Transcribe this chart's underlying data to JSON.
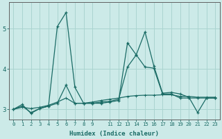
{
  "xlabel": "Humidex (Indice chaleur)",
  "background_color": "#cceae8",
  "grid_color": "#aad4d0",
  "line_color": "#1a6b65",
  "xlim": [
    -0.5,
    23.5
  ],
  "ylim": [
    2.75,
    5.65
  ],
  "xtick_positions": [
    0,
    1,
    2,
    3,
    4,
    5,
    6,
    7,
    8,
    9,
    11,
    12,
    13,
    14,
    15,
    16,
    17,
    18,
    19,
    20,
    21,
    22,
    23
  ],
  "xtick_labels": [
    "0",
    "1",
    "2",
    "3",
    "4",
    "5",
    "6",
    "7",
    "8",
    "9",
    "11",
    "12",
    "13",
    "14",
    "15",
    "16",
    "17",
    "18",
    "19",
    "20",
    "21",
    "22",
    "23"
  ],
  "yticks": [
    3,
    4,
    5
  ],
  "series1_x": [
    0,
    1,
    2,
    3,
    4,
    5,
    6,
    7,
    8,
    9,
    10,
    11,
    12,
    13,
    14,
    15,
    16,
    17,
    18,
    19,
    20,
    21,
    22,
    23
  ],
  "series1_y": [
    3.0,
    3.12,
    2.9,
    3.02,
    3.08,
    5.05,
    5.4,
    3.55,
    3.15,
    3.15,
    3.15,
    3.18,
    3.22,
    4.65,
    4.35,
    4.92,
    4.08,
    3.4,
    3.42,
    3.38,
    3.3,
    2.92,
    3.28,
    3.28
  ],
  "series2_x": [
    0,
    1,
    2,
    3,
    4,
    5,
    6,
    7,
    8,
    9,
    10,
    11,
    12,
    13,
    14,
    15,
    16,
    17,
    18,
    19,
    20,
    21,
    22,
    23
  ],
  "series2_y": [
    3.0,
    3.08,
    2.92,
    3.02,
    3.08,
    3.15,
    3.6,
    3.15,
    3.15,
    3.15,
    3.18,
    3.2,
    3.25,
    4.05,
    4.35,
    4.05,
    4.02,
    3.38,
    3.38,
    3.28,
    3.28,
    3.28,
    3.28,
    3.28
  ],
  "series3_x": [
    0,
    1,
    2,
    3,
    4,
    5,
    6,
    7,
    8,
    9,
    10,
    11,
    12,
    13,
    14,
    15,
    16,
    17,
    18,
    19,
    20,
    21,
    22,
    23
  ],
  "series3_y": [
    3.0,
    3.05,
    3.02,
    3.05,
    3.1,
    3.18,
    3.28,
    3.15,
    3.15,
    3.18,
    3.22,
    3.25,
    3.28,
    3.32,
    3.34,
    3.35,
    3.35,
    3.36,
    3.36,
    3.32,
    3.32,
    3.3,
    3.3,
    3.3
  ]
}
